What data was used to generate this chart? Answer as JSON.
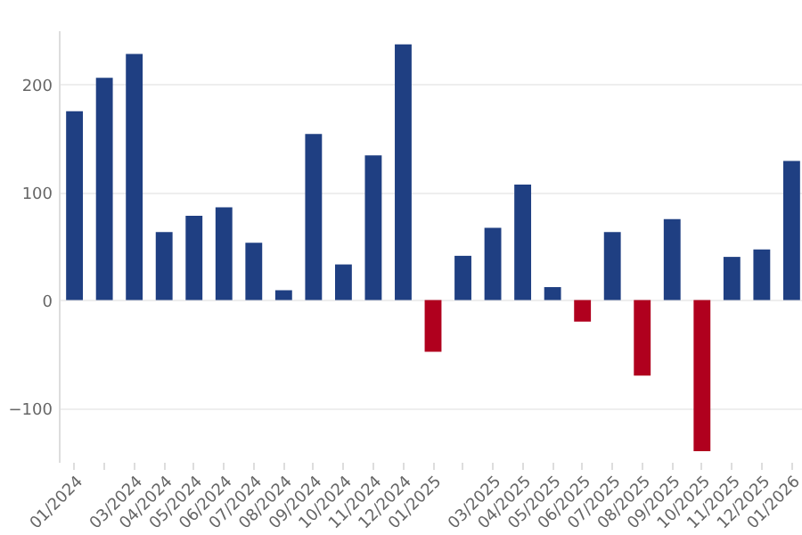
{
  "chart_data": {
    "type": "bar",
    "categories": [
      "01/2024",
      null,
      "03/2024",
      "04/2024",
      "05/2024",
      "06/2024",
      "07/2024",
      "08/2024",
      "09/2024",
      "10/2024",
      "11/2024",
      "12/2024",
      "01/2025",
      null,
      "03/2025",
      "04/2025",
      "05/2025",
      "06/2025",
      "07/2025",
      "08/2025",
      "09/2025",
      "10/2025",
      "11/2025",
      "12/2025",
      "01/2026"
    ],
    "values": [
      175,
      206,
      228,
      63,
      78,
      86,
      53,
      9,
      154,
      33,
      134,
      237,
      -48,
      41,
      67,
      107,
      12,
      -20,
      63,
      -70,
      75,
      -140,
      40,
      47,
      129
    ],
    "colors": [
      "#1f3f82",
      "#1f3f82",
      "#1f3f82",
      "#1f3f82",
      "#1f3f82",
      "#1f3f82",
      "#1f3f82",
      "#1f3f82",
      "#1f3f82",
      "#1f3f82",
      "#1f3f82",
      "#1f3f82",
      "#b0001e",
      "#1f3f82",
      "#1f3f82",
      "#1f3f82",
      "#1f3f82",
      "#b0001e",
      "#1f3f82",
      "#b0001e",
      "#1f3f82",
      "#b0001e",
      "#1f3f82",
      "#1f3f82",
      "#1f3f82"
    ],
    "ylim": [
      -150,
      250
    ],
    "yticks": [
      -100,
      0,
      100,
      200
    ],
    "grid": "y"
  }
}
